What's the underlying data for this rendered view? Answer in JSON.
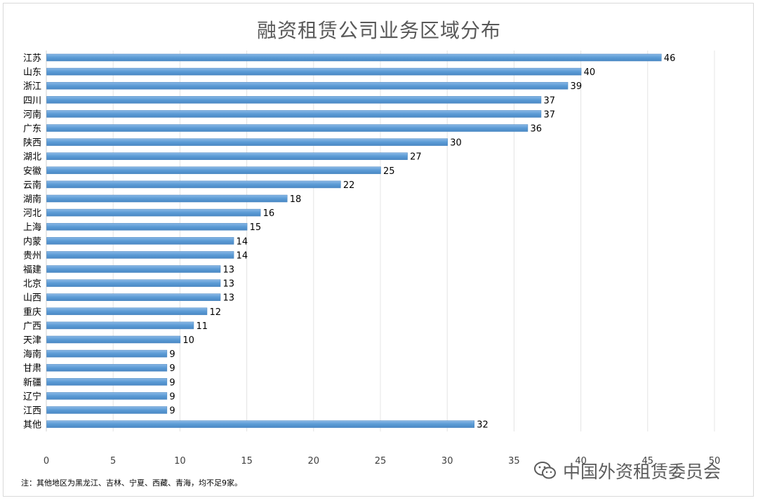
{
  "chart_data": {
    "type": "bar",
    "orientation": "horizontal",
    "title": "融资租赁公司业务区域分布",
    "categories": [
      "江苏",
      "山东",
      "浙江",
      "四川",
      "河南",
      "广东",
      "陕西",
      "湖北",
      "安徽",
      "云南",
      "湖南",
      "河北",
      "上海",
      "内蒙",
      "贵州",
      "福建",
      "北京",
      "山西",
      "重庆",
      "广西",
      "天津",
      "海南",
      "甘肃",
      "新疆",
      "辽宁",
      "江西",
      "其他"
    ],
    "values": [
      46,
      40,
      39,
      37,
      37,
      36,
      30,
      27,
      25,
      22,
      18,
      16,
      15,
      14,
      14,
      13,
      13,
      13,
      12,
      11,
      10,
      9,
      9,
      9,
      9,
      9,
      32
    ],
    "xlim": [
      0,
      50
    ],
    "xticks": [
      0,
      5,
      10,
      15,
      20,
      25,
      30,
      35,
      40,
      45,
      50
    ],
    "grid": "vertical",
    "data_labels": true,
    "bar_color": "#5b9bd5",
    "bar_color_light": "#8ab8e6"
  },
  "note": "注：其他地区为黑龙江、吉林、宁夏、西藏、青海，均不足9家。",
  "watermark": {
    "text": "中国外资租赁委员会",
    "icon": "wechat-icon"
  }
}
